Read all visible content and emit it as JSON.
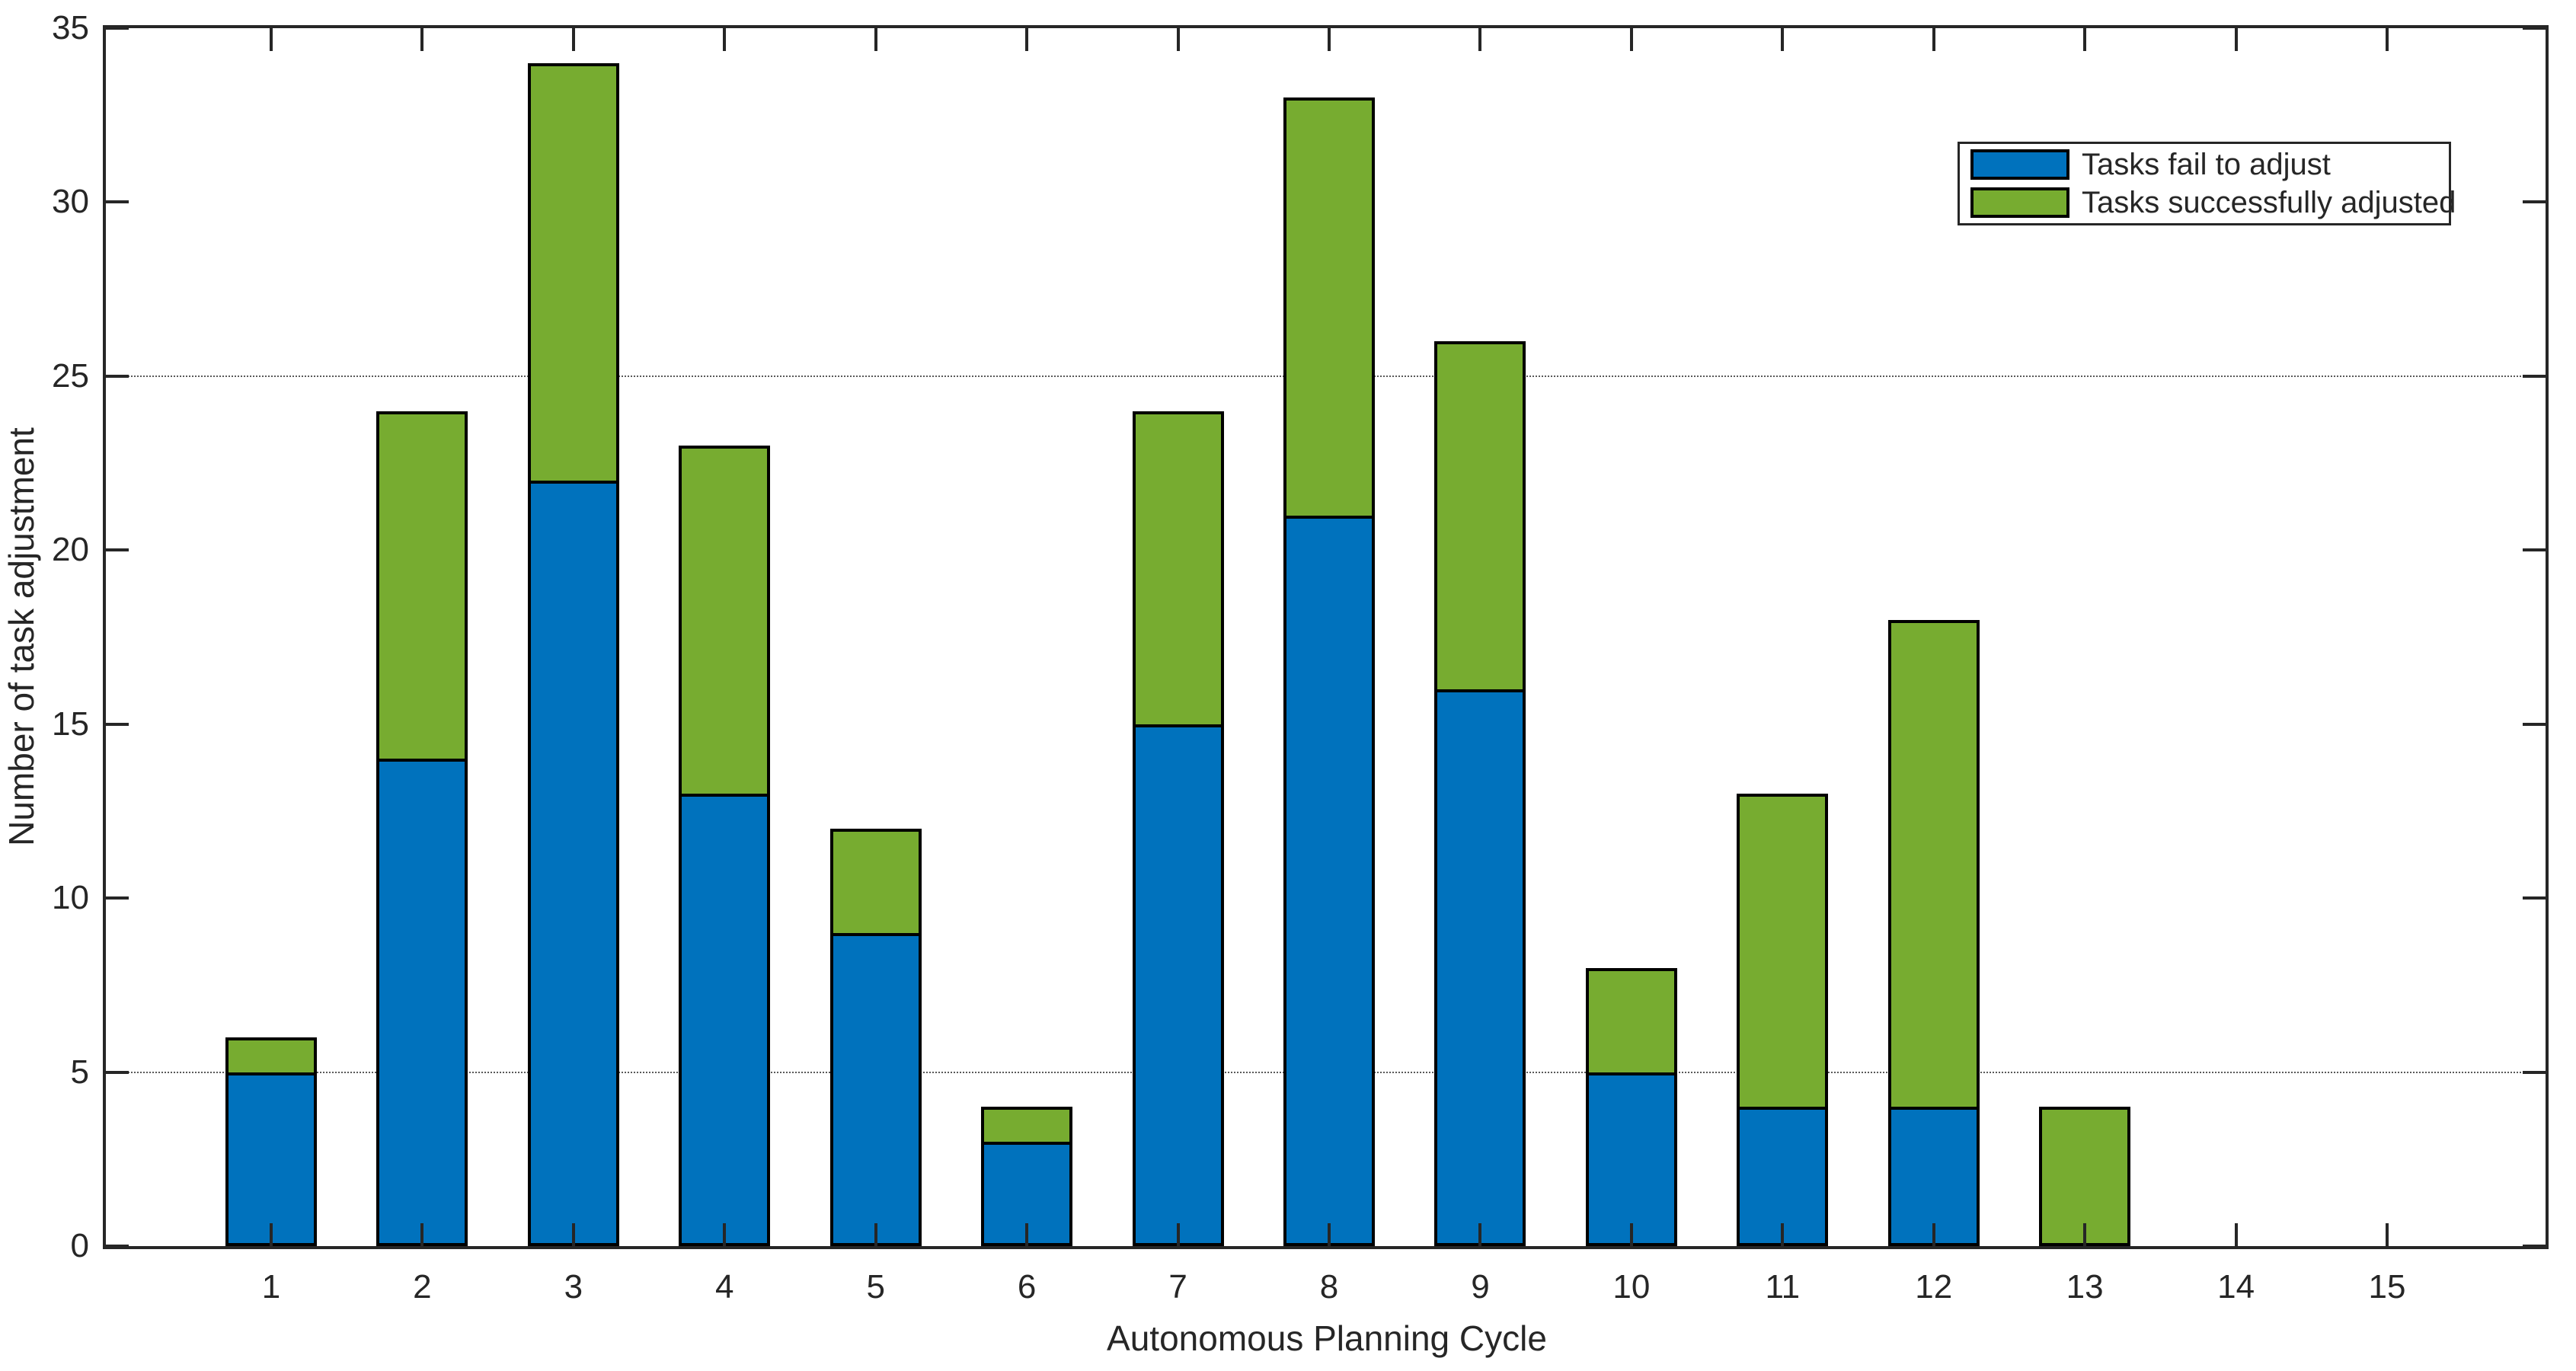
{
  "figure": {
    "background": "#ffffff",
    "axis_color": "#262626",
    "bar_edge_color": "#000000"
  },
  "chart_data": {
    "type": "bar",
    "stacked": true,
    "title": "",
    "xlabel": "Autonomous Planning Cycle",
    "ylabel": "Number of task adjustment",
    "categories": [
      1,
      2,
      3,
      4,
      5,
      6,
      7,
      8,
      9,
      10,
      11,
      12,
      13,
      14,
      15
    ],
    "series": [
      {
        "name": "Tasks fail to adjust",
        "color": "#0072BD",
        "values": [
          5,
          14,
          22,
          13,
          9,
          3,
          15,
          21,
          16,
          5,
          4,
          4,
          0,
          0,
          0
        ]
      },
      {
        "name": "Tasks successfully adjusted",
        "color": "#77AC30",
        "values": [
          1,
          10,
          12,
          10,
          3,
          1,
          9,
          12,
          10,
          3,
          9,
          14,
          4,
          0,
          0
        ]
      }
    ],
    "totals": [
      6,
      24,
      34,
      23,
      12,
      4,
      24,
      33,
      26,
      8,
      13,
      18,
      4,
      0,
      0
    ],
    "ylim": [
      0,
      35
    ],
    "yticks": [
      0,
      5,
      10,
      15,
      20,
      25,
      30,
      35
    ],
    "gridlines_y": [
      5,
      25
    ],
    "grid_style": "dotted",
    "legend_position": "top-right",
    "legend_labels": [
      "Tasks fail to adjust",
      "Tasks successfully adjusted"
    ]
  }
}
